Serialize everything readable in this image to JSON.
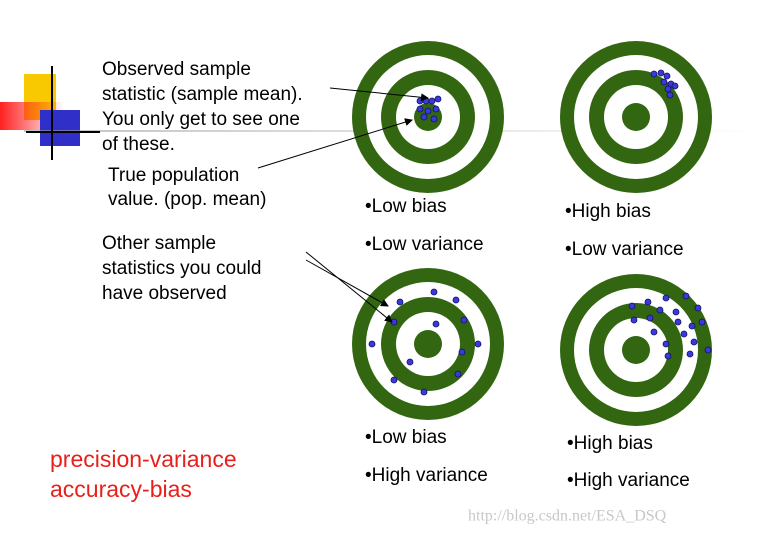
{
  "annotations": {
    "observed": [
      "Observed sample",
      "statistic (sample mean).",
      "You only get to see one",
      "of these."
    ],
    "true_value": [
      "True population",
      "value. (pop. mean)"
    ],
    "other": [
      "Other sample",
      "statistics you could",
      "have observed"
    ]
  },
  "targets": [
    {
      "labels": [
        "•Low bias",
        "•Low variance"
      ]
    },
    {
      "labels": [
        "•High bias",
        "•Low variance"
      ]
    },
    {
      "labels": [
        "•Low bias",
        "•High variance"
      ]
    },
    {
      "labels": [
        "•High bias",
        "•High variance"
      ]
    }
  ],
  "footer": [
    "precision-variance",
    "accuracy-bias"
  ],
  "watermark": "http://blog.csdn.net/ESA_DSQ"
}
